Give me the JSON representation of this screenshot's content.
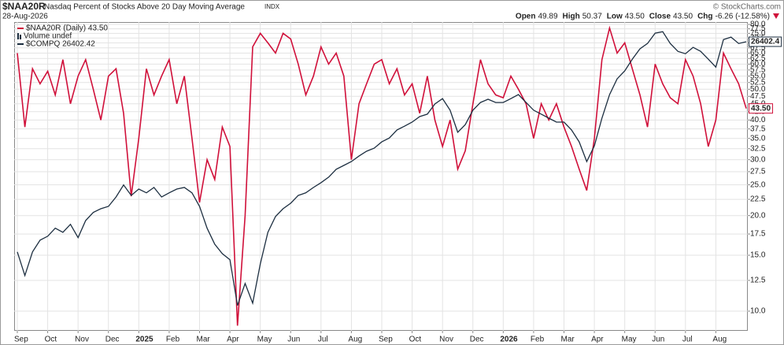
{
  "header": {
    "symbol": "$NAA20R",
    "name": "Nasdaq Percent of Stocks Above 20 Day Moving Average",
    "exchange": "INDX",
    "credit": "© StockCharts.com",
    "date": "28-Aug-2026",
    "stats": [
      {
        "label": "Open",
        "value": "49.89"
      },
      {
        "label": "High",
        "value": "50.37"
      },
      {
        "label": "Low",
        "value": "43.50"
      },
      {
        "label": "Close",
        "value": "43.50"
      },
      {
        "label": "Chg",
        "value": "-6.26 (-12.58%)"
      }
    ]
  },
  "chart_data": {
    "type": "line",
    "ylog": true,
    "y2log": true,
    "grid": true,
    "legend": "top-left",
    "volume_legend": "Volume undef",
    "categories": [
      "Sep",
      null,
      null,
      null,
      "Oct",
      null,
      null,
      null,
      "Nov",
      null,
      null,
      null,
      "Dec",
      null,
      null,
      null,
      "2025",
      null,
      null,
      null,
      "Feb",
      null,
      null,
      null,
      "Mar",
      null,
      null,
      null,
      "Apr",
      null,
      null,
      null,
      "May",
      null,
      null,
      null,
      "Jun",
      null,
      null,
      null,
      "Jul",
      null,
      null,
      null,
      "Aug",
      null,
      null,
      null,
      "Sep",
      null,
      null,
      null,
      "Oct",
      null,
      null,
      null,
      "Nov",
      null,
      null,
      null,
      "Dec",
      null,
      null,
      null,
      "2026",
      null,
      null,
      null,
      "Feb",
      null,
      null,
      null,
      "Mar",
      null,
      null,
      null,
      "Apr",
      null,
      null,
      null,
      "May",
      null,
      null,
      null,
      "Jun",
      null,
      null,
      null,
      "Jul",
      null,
      null,
      null,
      "Aug",
      null,
      null,
      null,
      null
    ],
    "ylim": [
      8.67,
      81.4
    ],
    "yticks": [
      {
        "value": 10,
        "label": "10.0"
      },
      {
        "value": 12.5,
        "label": "12.5"
      },
      {
        "value": 15,
        "label": "15.0"
      },
      {
        "value": 17.5,
        "label": "17.5"
      },
      {
        "value": 20,
        "label": "20.0"
      },
      {
        "value": 22.5,
        "label": "22.5"
      },
      {
        "value": 25,
        "label": "25.0"
      },
      {
        "value": 27.5,
        "label": "27.5"
      },
      {
        "value": 30,
        "label": "30.0"
      },
      {
        "value": 32.5,
        "label": "32.5"
      },
      {
        "value": 35,
        "label": "35.0"
      },
      {
        "value": 37.5,
        "label": "37.5"
      },
      {
        "value": 40,
        "label": "40.0"
      },
      {
        "value": 42.5,
        "label": "42.5"
      },
      {
        "value": 45,
        "label": "45.0"
      },
      {
        "value": 47.5,
        "label": "47.5"
      },
      {
        "value": 50,
        "label": "50.0"
      },
      {
        "value": 52.5,
        "label": "52.5"
      },
      {
        "value": 55,
        "label": "55.0"
      },
      {
        "value": 57.5,
        "label": "57.5"
      },
      {
        "value": 60,
        "label": "60.0"
      },
      {
        "value": 62.5,
        "label": "62.5"
      },
      {
        "value": 65,
        "label": "65.0"
      },
      {
        "value": 67.5,
        "label": "67.5"
      },
      {
        "value": 70,
        "label": "70.0"
      },
      {
        "value": 72.5,
        "label": "72.5"
      },
      {
        "value": 75,
        "label": "75.0"
      },
      {
        "value": 77.5,
        "label": "77.5"
      },
      {
        "value": 80,
        "label": "80.0"
      }
    ],
    "y2lim": [
      14830,
      27460
    ],
    "series": [
      {
        "name": "$NAA20R (Daily) 43.50",
        "color": "#d0103a",
        "end_label": "43.50",
        "values": [
          65,
          38,
          58,
          52,
          57,
          48,
          62,
          45,
          55,
          62,
          50,
          40,
          55,
          58,
          42,
          23,
          35,
          58,
          48,
          55,
          62,
          45,
          55,
          35,
          22,
          30,
          26,
          38,
          33,
          9,
          20,
          68,
          75,
          70,
          65,
          75,
          72,
          60,
          48,
          55,
          68,
          60,
          65,
          55,
          30,
          45,
          52,
          60,
          62,
          52,
          58,
          48,
          52,
          42,
          55,
          40,
          33,
          40,
          28,
          32,
          45,
          62,
          52,
          48,
          47,
          55,
          50,
          45,
          35,
          45,
          40,
          45,
          38,
          33,
          28,
          24,
          35,
          62,
          78,
          65,
          70,
          58,
          48,
          38,
          60,
          52,
          47,
          45,
          62,
          55,
          45,
          33,
          40,
          65,
          58,
          52,
          43.5
        ]
      },
      {
        "name": "$COMPQ 26402.42",
        "color": "#1c2e40",
        "axis": "y2",
        "end_label": "26402.4",
        "values": [
          17360,
          16560,
          17360,
          17770,
          17910,
          18200,
          18050,
          18340,
          17860,
          18480,
          18780,
          18920,
          19010,
          19370,
          19840,
          19430,
          19680,
          19530,
          19740,
          19370,
          19530,
          19680,
          19740,
          19530,
          19010,
          18200,
          17630,
          17300,
          17090,
          15600,
          16300,
          15670,
          16950,
          18050,
          18630,
          18920,
          19130,
          19430,
          19530,
          19740,
          19930,
          20150,
          20470,
          20630,
          20790,
          21020,
          21220,
          21350,
          21620,
          21790,
          22140,
          22310,
          22490,
          22740,
          22850,
          23320,
          23570,
          23030,
          22040,
          22380,
          23030,
          23390,
          23540,
          23390,
          23390,
          23570,
          23760,
          23390,
          23030,
          22850,
          22670,
          22490,
          22490,
          22140,
          21620,
          20790,
          21450,
          22670,
          23760,
          24520,
          24910,
          25500,
          26030,
          26310,
          26860,
          26940,
          26310,
          25900,
          25780,
          26110,
          25900,
          25500,
          25100,
          26520,
          26650,
          26310,
          26402.42
        ]
      }
    ]
  }
}
